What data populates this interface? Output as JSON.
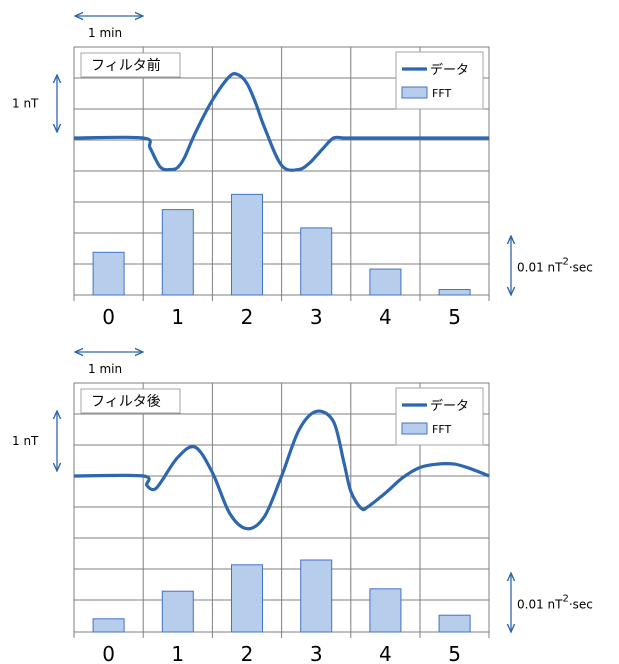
{
  "colors": {
    "line": "#2e67ad",
    "bar_fill": "#b7cdec",
    "bar_stroke": "#4472c4",
    "grid": "#7f7f7f",
    "arrow": "#2e67ad"
  },
  "annotations": {
    "time_scale": "1 min",
    "amplitude_scale": "1 nT",
    "power_scale": "0.01 nT",
    "power_scale_sup": "2",
    "power_scale_suffix": "sec"
  },
  "chart_data": [
    {
      "type": "bar+line",
      "title": "フィルタ前",
      "legend": {
        "line": "データ",
        "bar": "FFT",
        "placement": "top-right"
      },
      "categories": [
        "0",
        "1",
        "2",
        "3",
        "4",
        "5"
      ],
      "series": [
        {
          "name": "FFT",
          "type": "bar",
          "values": [
            1.4,
            2.8,
            3.3,
            2.2,
            0.85,
            0.18
          ]
        },
        {
          "name": "データ",
          "type": "line",
          "x": [
            -0.5,
            0.5,
            0.6,
            0.75,
            0.9,
            1.0,
            1.1,
            1.25,
            1.5,
            1.75,
            1.88,
            2.0,
            2.12,
            2.25,
            2.5,
            2.75,
            2.9,
            3.0,
            3.1,
            3.25,
            3.4,
            3.5,
            3.6,
            3.75,
            4.0,
            4.5,
            5.0,
            5.5
          ],
          "y": [
            0,
            0,
            -0.32,
            -0.93,
            -1.0,
            -0.93,
            -0.61,
            0.15,
            1.2,
            1.96,
            2.0,
            1.73,
            1.14,
            0.35,
            -0.87,
            -1.0,
            -0.8,
            -0.57,
            -0.33,
            0.0,
            0,
            0,
            0,
            0,
            0,
            0,
            0,
            0
          ]
        }
      ],
      "grid": true
    },
    {
      "type": "bar+line",
      "title": "フィルタ後",
      "legend": {
        "line": "データ",
        "bar": "FFT",
        "placement": "top-right"
      },
      "categories": [
        "0",
        "1",
        "2",
        "3",
        "4",
        "5"
      ],
      "series": [
        {
          "name": "FFT",
          "type": "bar",
          "values": [
            0.55,
            1.7,
            2.8,
            3.0,
            1.8,
            0.7
          ]
        },
        {
          "name": "データ",
          "type": "line",
          "x": [
            -0.5,
            0.5,
            0.55,
            0.65,
            0.75,
            1.0,
            1.25,
            1.5,
            1.75,
            2.0,
            2.25,
            2.5,
            2.75,
            3.0,
            3.25,
            3.4,
            3.5,
            3.65,
            3.75,
            4.0,
            4.25,
            4.5,
            4.75,
            5.0,
            5.25,
            5.5
          ],
          "y": [
            0,
            0,
            -0.27,
            -0.4,
            -0.2,
            0.55,
            0.85,
            0.1,
            -1.1,
            -1.55,
            -1.2,
            0.0,
            1.35,
            1.9,
            1.6,
            0.4,
            -0.45,
            -0.95,
            -0.9,
            -0.5,
            -0.05,
            0.25,
            0.35,
            0.35,
            0.2,
            0.0
          ]
        }
      ],
      "grid": true
    }
  ]
}
